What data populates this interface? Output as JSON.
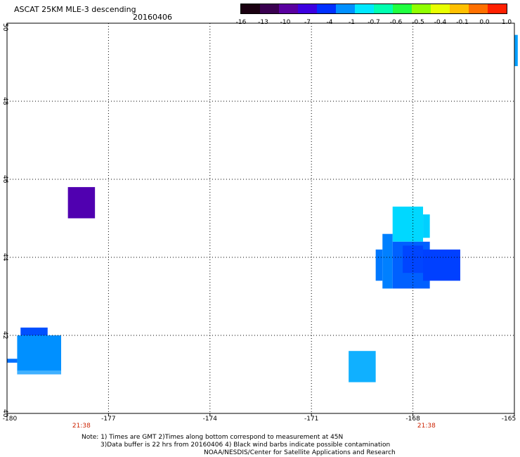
{
  "header": {
    "title": "ASCAT 25KM MLE-3 descending",
    "date": "20160406"
  },
  "colorbar": {
    "labels": [
      "-16",
      "-13",
      "-10",
      "-7",
      "-4",
      "-1",
      "-0.7",
      "-0.6",
      "-0.5",
      "-0.4",
      "-0.1",
      "0.0",
      "1.0"
    ],
    "colors": [
      "#1a0010",
      "#3a0050",
      "#5a00a0",
      "#3c00e0",
      "#0030ff",
      "#0090ff",
      "#00e8ff",
      "#00ffb0",
      "#20ff40",
      "#90ff00",
      "#e8ff00",
      "#ffc000",
      "#ff7000",
      "#ff2000"
    ]
  },
  "axes": {
    "y_labels": [
      "50",
      "48",
      "46",
      "44",
      "42",
      "40"
    ],
    "x_labels": [
      "-180",
      "-177",
      "-174",
      "-171",
      "-168",
      "-165"
    ],
    "x_ticks": [
      -180,
      -177,
      -174,
      -171,
      -168,
      -165
    ],
    "lon_range": [
      -180,
      -165
    ],
    "lat_range": [
      40,
      50
    ],
    "times": [
      {
        "label": "21:38",
        "lon": -177.8
      },
      {
        "label": "21:38",
        "lon": -167.6
      }
    ]
  },
  "map_data": {
    "cells": [
      {
        "lon": [
          -178.2,
          -177.4
        ],
        "lat": [
          45.0,
          45.8
        ],
        "color": "#5000b0"
      },
      {
        "lon": [
          -179.6,
          -178.8
        ],
        "lat": [
          42.0,
          42.2
        ],
        "color": "#0050ff"
      },
      {
        "lon": [
          -179.7,
          -178.4
        ],
        "lat": [
          41.0,
          42.0
        ],
        "color": "#0090ff"
      },
      {
        "lon": [
          -179.7,
          -178.4
        ],
        "lat": [
          41.0,
          41.1
        ],
        "color": "#40b0ff"
      },
      {
        "lon": [
          -180.0,
          -179.7
        ],
        "lat": [
          41.3,
          41.4
        ],
        "color": "#0070ff"
      },
      {
        "lon": [
          -169.9,
          -169.1
        ],
        "lat": [
          40.8,
          41.6
        ],
        "color": "#10b0ff"
      },
      {
        "lon": [
          -168.6,
          -167.7
        ],
        "lat": [
          44.4,
          45.3
        ],
        "color": "#00d8ff"
      },
      {
        "lon": [
          -167.7,
          -167.5
        ],
        "lat": [
          44.5,
          45.1
        ],
        "color": "#00d0ff"
      },
      {
        "lon": [
          -168.9,
          -168.6
        ],
        "lat": [
          43.2,
          44.6
        ],
        "color": "#0080ff"
      },
      {
        "lon": [
          -169.1,
          -168.9
        ],
        "lat": [
          43.4,
          44.2
        ],
        "color": "#0078ff"
      },
      {
        "lon": [
          -168.6,
          -167.5
        ],
        "lat": [
          43.2,
          44.4
        ],
        "color": "#0060ff"
      },
      {
        "lon": [
          -167.7,
          -166.6
        ],
        "lat": [
          43.4,
          44.2
        ],
        "color": "#0040ff"
      },
      {
        "lon": [
          -168.3,
          -167.7
        ],
        "lat": [
          43.6,
          44.3
        ],
        "color": "#0045ff"
      },
      {
        "lon": [
          -165.0,
          -164.9
        ],
        "lat": [
          48.9,
          49.7
        ],
        "color": "#00a0ff"
      }
    ]
  },
  "footer": {
    "line1": "Note: 1) Times are GMT 2)Times along bottom correspond to measurement at 45N",
    "line2": "3)Data buffer is 22 hrs from 20160406 4) Black wind barbs indicate possible contamination",
    "line3": "NOAA/NESDIS/Center for Satellite Applications and Research"
  }
}
